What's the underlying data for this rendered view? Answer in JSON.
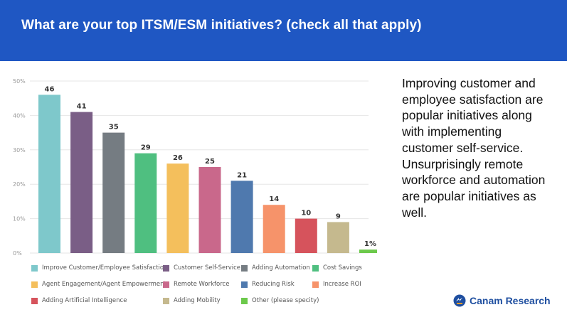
{
  "header": {
    "title": "What are your top ITSM/ESM initiatives? (check all that apply)"
  },
  "chart_data": {
    "type": "bar",
    "title": "",
    "xlabel": "",
    "ylabel": "",
    "ylim": [
      0,
      50
    ],
    "y_ticks": [
      "0%",
      "10%",
      "20%",
      "30%",
      "40%",
      "50%"
    ],
    "grid": true,
    "legend_position": "bottom",
    "categories": [
      "Improve Customer/Employee Satisfaction",
      "Customer Self-Service",
      "Adding Automation",
      "Cost Savings",
      "Agent Engagement/Agent Empowerment",
      "Remote Workforce",
      "Reducing Risk",
      "Increase ROI",
      "Adding Artificial Intelligence",
      "Adding Mobility",
      "Other (please specity)"
    ],
    "values": [
      46,
      41,
      35,
      29,
      26,
      25,
      21,
      14,
      10,
      9,
      1
    ],
    "value_labels": [
      "46",
      "41",
      "35",
      "29",
      "26",
      "25",
      "21",
      "14",
      "10",
      "9",
      "1%"
    ],
    "colors": [
      "#7ec8cb",
      "#7a5e86",
      "#757c82",
      "#4fbf80",
      "#f4bf5c",
      "#c9688b",
      "#4f79ae",
      "#f6936a",
      "#d6535c",
      "#c5b98e",
      "#6cc94b"
    ]
  },
  "side_text": "Improving customer and employee satisfaction are popular initiatives along with implementing customer self-service. Unsurprisingly remote workforce and automation are popular initiatives as well.",
  "brand": {
    "name": "Canam Research",
    "color": "#1f4fa0"
  }
}
